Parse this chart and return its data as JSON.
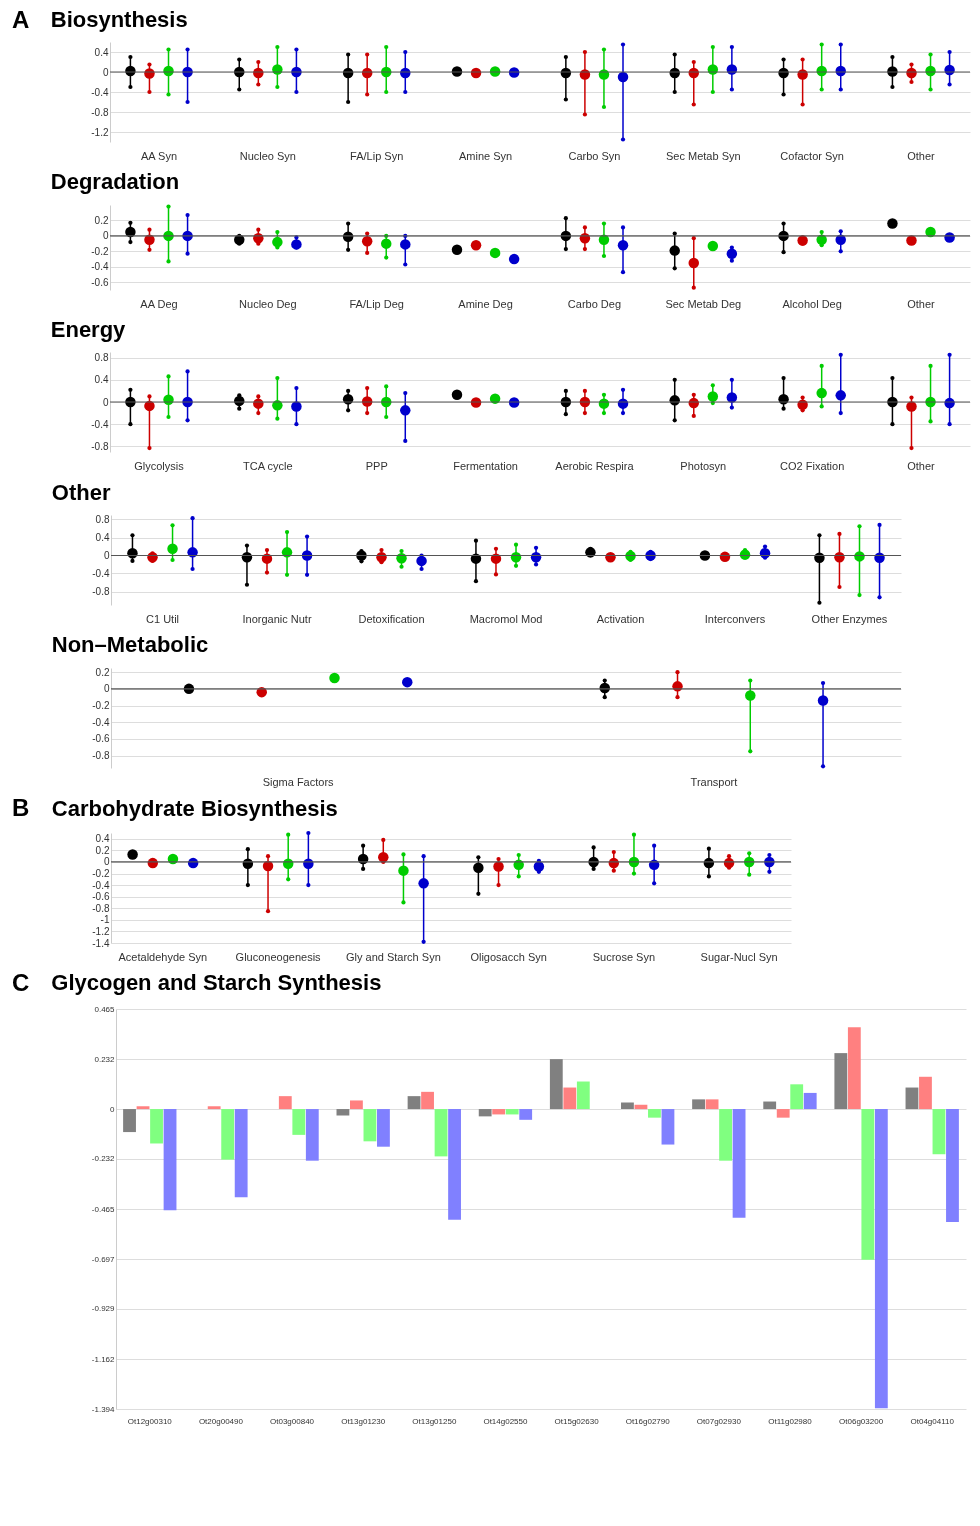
{
  "chart_data": [
    {
      "type": "scatter",
      "title": "Biosynthesis",
      "annotations": [
        "A"
      ],
      "categories": [
        "AA Syn",
        "Nucleo Syn",
        "FA/Lip Syn",
        "Amine Syn",
        "Carbo Syn",
        "Sec Metab Syn",
        "Cofactor Syn",
        "Other"
      ],
      "ylim": [
        -1.4,
        0.6
      ],
      "yticks": [
        0.4,
        0,
        -0.4,
        -0.8,
        -1.2
      ],
      "grid": "y",
      "ref_lines": [
        {
          "axis": "y",
          "value": 0
        }
      ],
      "series": [
        {
          "color": "#000000",
          "values": [
            0.02,
            0,
            -0.02,
            0.01,
            -0.02,
            -0.02,
            -0.02,
            0.01
          ],
          "errors": [
            [
              -0.3,
              0.3
            ],
            [
              -0.35,
              0.25
            ],
            [
              -0.6,
              0.35
            ],
            null,
            [
              -0.55,
              0.3
            ],
            [
              -0.4,
              0.35
            ],
            [
              -0.45,
              0.25
            ],
            [
              -0.3,
              0.3
            ]
          ]
        },
        {
          "color": "#cc0000",
          "values": [
            -0.03,
            -0.02,
            -0.02,
            -0.02,
            -0.05,
            -0.02,
            -0.05,
            -0.02
          ],
          "errors": [
            [
              -0.4,
              0.15
            ],
            [
              -0.25,
              0.2
            ],
            [
              -0.45,
              0.35
            ],
            null,
            [
              -0.85,
              0.4
            ],
            [
              -0.65,
              0.2
            ],
            [
              -0.65,
              0.25
            ],
            [
              -0.2,
              0.15
            ]
          ]
        },
        {
          "color": "#00cc00",
          "values": [
            0.02,
            0.05,
            0,
            0.01,
            -0.05,
            0.05,
            0.02,
            0.02
          ],
          "errors": [
            [
              -0.45,
              0.45
            ],
            [
              -0.3,
              0.5
            ],
            [
              -0.4,
              0.5
            ],
            null,
            [
              -0.7,
              0.45
            ],
            [
              -0.4,
              0.5
            ],
            [
              -0.35,
              0.55
            ],
            [
              -0.35,
              0.35
            ]
          ]
        },
        {
          "color": "#0000cc",
          "values": [
            0,
            0,
            -0.02,
            -0.01,
            -0.1,
            0.05,
            0.02,
            0.04
          ],
          "errors": [
            [
              -0.6,
              0.45
            ],
            [
              -0.4,
              0.45
            ],
            [
              -0.4,
              0.4
            ],
            null,
            [
              -1.35,
              0.55
            ],
            [
              -0.35,
              0.5
            ],
            [
              -0.35,
              0.55
            ],
            [
              -0.25,
              0.4
            ]
          ]
        }
      ]
    },
    {
      "type": "scatter",
      "title": "Degradation",
      "categories": [
        "AA Deg",
        "Nucleo Deg",
        "FA/Lip Deg",
        "Amine Deg",
        "Carbo Deg",
        "Sec Metab Deg",
        "Alcohol Deg",
        "Other"
      ],
      "ylim": [
        -0.7,
        0.4
      ],
      "yticks": [
        0.2,
        0,
        -0.2,
        -0.4,
        -0.6
      ],
      "grid": "y",
      "ref_lines": [
        {
          "axis": "y",
          "value": 0
        }
      ],
      "series": [
        {
          "color": "#000000",
          "values": [
            0.05,
            -0.05,
            -0.01,
            -0.18,
            0,
            -0.19,
            0,
            0.16
          ],
          "errors": [
            [
              -0.08,
              0.17
            ],
            [
              -0.1,
              0
            ],
            [
              -0.18,
              0.16
            ],
            null,
            [
              -0.17,
              0.23
            ],
            [
              -0.42,
              0.03
            ],
            [
              -0.21,
              0.16
            ],
            null
          ]
        },
        {
          "color": "#cc0000",
          "values": [
            -0.05,
            -0.03,
            -0.07,
            -0.12,
            -0.03,
            -0.35,
            -0.06,
            -0.06
          ],
          "errors": [
            [
              -0.18,
              0.08
            ],
            [
              -0.1,
              0.08
            ],
            [
              -0.22,
              0.03
            ],
            null,
            [
              -0.17,
              0.11
            ],
            [
              -0.67,
              -0.03
            ],
            [
              -0.1,
              -0.02
            ],
            null
          ]
        },
        {
          "color": "#00cc00",
          "values": [
            0,
            -0.08,
            -0.1,
            -0.22,
            -0.05,
            -0.13,
            -0.05,
            0.05
          ],
          "errors": [
            [
              -0.33,
              0.38
            ],
            [
              -0.15,
              0.05
            ],
            [
              -0.28,
              0
            ],
            null,
            [
              -0.26,
              0.16
            ],
            null,
            [
              -0.12,
              0.05
            ],
            null
          ]
        },
        {
          "color": "#0000cc",
          "values": [
            0,
            -0.11,
            -0.11,
            -0.3,
            -0.12,
            -0.23,
            -0.05,
            -0.02
          ],
          "errors": [
            [
              -0.23,
              0.27
            ],
            [
              -0.15,
              -0.02
            ],
            [
              -0.37,
              0
            ],
            null,
            [
              -0.47,
              0.11
            ],
            [
              -0.32,
              -0.15
            ],
            [
              -0.2,
              0.06
            ],
            null
          ]
        }
      ]
    },
    {
      "type": "scatter",
      "title": "Energy",
      "categories": [
        "Glycolysis",
        "TCA cycle",
        "PPP",
        "Fermentation",
        "Aerobic Respira",
        "Photosyn",
        "CO2 Fixation",
        "Other"
      ],
      "ylim": [
        -0.9,
        0.9
      ],
      "yticks": [
        0.8,
        0.4,
        0,
        -0.4,
        -0.8
      ],
      "grid": "y",
      "ref_lines": [
        {
          "axis": "y",
          "value": 0
        }
      ],
      "series": [
        {
          "color": "#000000",
          "values": [
            0,
            0.02,
            0.05,
            0.13,
            0,
            0.03,
            0.05,
            0
          ],
          "errors": [
            [
              -0.4,
              0.22
            ],
            [
              -0.12,
              0.12
            ],
            [
              -0.15,
              0.2
            ],
            null,
            [
              -0.22,
              0.2
            ],
            [
              -0.33,
              0.4
            ],
            [
              -0.12,
              0.43
            ],
            [
              -0.4,
              0.43
            ]
          ]
        },
        {
          "color": "#cc0000",
          "values": [
            -0.07,
            -0.03,
            0.01,
            -0.01,
            0,
            -0.02,
            -0.05,
            -0.08
          ],
          "errors": [
            [
              -0.83,
              0.1
            ],
            [
              -0.2,
              0.1
            ],
            [
              -0.2,
              0.25
            ],
            null,
            [
              -0.2,
              0.2
            ],
            [
              -0.25,
              0.13
            ],
            [
              -0.15,
              0.08
            ],
            [
              -0.83,
              0.08
            ]
          ]
        },
        {
          "color": "#00cc00",
          "values": [
            0.04,
            -0.06,
            0,
            0.06,
            -0.03,
            0.1,
            0.16,
            0
          ],
          "errors": [
            [
              -0.27,
              0.46
            ],
            [
              -0.3,
              0.43
            ],
            [
              -0.27,
              0.28
            ],
            null,
            [
              -0.2,
              0.13
            ],
            [
              -0.02,
              0.3
            ],
            [
              -0.08,
              0.65
            ],
            [
              -0.35,
              0.65
            ]
          ]
        },
        {
          "color": "#0000cc",
          "values": [
            0,
            -0.08,
            -0.15,
            -0.01,
            -0.03,
            0.08,
            0.12,
            -0.02
          ],
          "errors": [
            [
              -0.33,
              0.55
            ],
            [
              -0.4,
              0.25
            ],
            [
              -0.7,
              0.16
            ],
            null,
            [
              -0.2,
              0.22
            ],
            [
              -0.1,
              0.4
            ],
            [
              -0.2,
              0.85
            ],
            [
              -0.4,
              0.85
            ]
          ]
        }
      ]
    },
    {
      "type": "scatter",
      "title": "Other",
      "categories": [
        "C1 Util",
        "Inorganic Nutr",
        "Detoxification",
        "Macromol Mod",
        "Activation",
        "Interconvers",
        "Other Enzymes"
      ],
      "ylim": [
        -1.1,
        0.9
      ],
      "yticks": [
        0.8,
        0.4,
        0,
        -0.4,
        -0.8
      ],
      "grid": "y",
      "ref_lines": [
        {
          "axis": "y",
          "value": 0
        }
      ],
      "series": [
        {
          "color": "#000000",
          "values": [
            0.05,
            -0.04,
            0,
            -0.07,
            0.07,
            0,
            -0.05
          ],
          "errors": [
            [
              -0.12,
              0.45
            ],
            [
              -0.65,
              0.22
            ],
            [
              -0.13,
              0.1
            ],
            [
              -0.57,
              0.33
            ],
            [
              0,
              0.15
            ],
            null,
            [
              -1.05,
              0.45
            ]
          ]
        },
        {
          "color": "#cc0000",
          "values": [
            -0.04,
            -0.07,
            -0.04,
            -0.07,
            -0.04,
            -0.03,
            -0.04
          ],
          "errors": [
            [
              -0.12,
              0.05
            ],
            [
              -0.38,
              0.12
            ],
            [
              -0.15,
              0.12
            ],
            [
              -0.42,
              0.15
            ],
            null,
            null,
            [
              -0.7,
              0.48
            ]
          ]
        },
        {
          "color": "#00cc00",
          "values": [
            0.15,
            0.07,
            -0.06,
            -0.04,
            -0.01,
            0.02,
            -0.02
          ],
          "errors": [
            [
              -0.1,
              0.67
            ],
            [
              -0.43,
              0.52
            ],
            [
              -0.25,
              0.1
            ],
            [
              -0.23,
              0.24
            ],
            [
              -0.1,
              0.08
            ],
            [
              -0.05,
              0.12
            ],
            [
              -0.88,
              0.65
            ]
          ]
        },
        {
          "color": "#0000cc",
          "values": [
            0.07,
            0,
            -0.12,
            -0.04,
            0,
            0.05,
            -0.05
          ],
          "errors": [
            [
              -0.3,
              0.83
            ],
            [
              -0.43,
              0.42
            ],
            [
              -0.3,
              0
            ],
            [
              -0.2,
              0.17
            ],
            [
              -0.08,
              0.08
            ],
            [
              -0.05,
              0.2
            ],
            [
              -0.93,
              0.68
            ]
          ]
        }
      ]
    },
    {
      "type": "scatter",
      "title": "Non–Metabolic",
      "categories": [
        "Sigma Factors",
        "Transport"
      ],
      "ylim": [
        -0.95,
        0.25
      ],
      "yticks": [
        0.2,
        0,
        -0.2,
        -0.4,
        -0.6,
        -0.8
      ],
      "grid": "y",
      "ref_lines": [
        {
          "axis": "y",
          "value": 0
        }
      ],
      "series": [
        {
          "color": "#000000",
          "values": [
            0,
            0.01
          ],
          "errors": [
            null,
            [
              -0.1,
              0.1
            ]
          ]
        },
        {
          "color": "#cc0000",
          "values": [
            -0.04,
            0.03
          ],
          "errors": [
            null,
            [
              -0.1,
              0.2
            ]
          ]
        },
        {
          "color": "#00cc00",
          "values": [
            0.13,
            -0.08
          ],
          "errors": [
            null,
            [
              -0.75,
              0.1
            ]
          ]
        },
        {
          "color": "#0000cc",
          "values": [
            0.08,
            -0.14
          ],
          "errors": [
            null,
            [
              -0.93,
              0.07
            ]
          ]
        }
      ]
    },
    {
      "type": "scatter",
      "title": "Carbohydrate Biosynthesis",
      "annotations": [
        "B"
      ],
      "categories": [
        "Acetaldehyde Syn",
        "Gluconeogenesis",
        "Gly and Starch Syn",
        "Oligosacch Syn",
        "Sucrose Syn",
        "Sugar-Nucl Syn"
      ],
      "ylim": [
        -1.4,
        0.5
      ],
      "yticks": [
        0.4,
        0.2,
        0,
        -0.2,
        -0.4,
        -0.6,
        -0.8,
        -1,
        -1.2,
        -1.4
      ],
      "grid": "y",
      "ref_lines": [
        {
          "axis": "y",
          "value": 0
        }
      ],
      "series": [
        {
          "color": "#000000",
          "values": [
            0.13,
            -0.03,
            0.05,
            -0.1,
            0,
            -0.02
          ],
          "errors": [
            null,
            [
              -0.4,
              0.22
            ],
            [
              -0.12,
              0.28
            ],
            [
              -0.55,
              0.08
            ],
            [
              -0.12,
              0.25
            ],
            [
              -0.25,
              0.23
            ]
          ]
        },
        {
          "color": "#cc0000",
          "values": [
            -0.02,
            -0.07,
            0.08,
            -0.08,
            -0.02,
            -0.02
          ],
          "errors": [
            null,
            [
              -0.85,
              0.1
            ],
            [
              0,
              0.38
            ],
            [
              -0.4,
              0.05
            ],
            [
              -0.15,
              0.17
            ],
            [
              -0.1,
              0.1
            ]
          ]
        },
        {
          "color": "#00cc00",
          "values": [
            0.05,
            -0.03,
            -0.15,
            -0.05,
            0,
            0
          ],
          "errors": [
            null,
            [
              -0.3,
              0.47
            ],
            [
              -0.7,
              0.13
            ],
            [
              -0.25,
              0.12
            ],
            [
              -0.2,
              0.47
            ],
            [
              -0.22,
              0.15
            ]
          ]
        },
        {
          "color": "#0000cc",
          "values": [
            -0.02,
            -0.03,
            -0.37,
            -0.08,
            -0.05,
            0
          ],
          "errors": [
            null,
            [
              -0.4,
              0.5
            ],
            [
              -1.38,
              0.1
            ],
            [
              -0.17,
              0.02
            ],
            [
              -0.37,
              0.28
            ],
            [
              -0.17,
              0.12
            ]
          ]
        }
      ]
    },
    {
      "type": "bar",
      "title": "Glycogen and Starch Synthesis",
      "annotations": [
        "C"
      ],
      "categories": [
        "Ot12g00310",
        "Ot20g00490",
        "Ot03g00840",
        "Ot13g01230",
        "Ot13g01250",
        "Ot14g02550",
        "Ot15g02630",
        "Ot16g02790",
        "Ot07g02930",
        "Ot11g02980",
        "Ot06g03200",
        "Ot04g04110"
      ],
      "ylim": [
        -1.394,
        0.465
      ],
      "yticks": [
        0.465,
        0.232,
        0,
        -0.232,
        -0.465,
        -0.697,
        -0.929,
        -1.162,
        -1.394
      ],
      "grid": "y",
      "series": [
        {
          "color": "#808080",
          "values": [
            -0.107,
            0,
            0,
            -0.03,
            0.06,
            -0.034,
            0.232,
            0.03,
            0.045,
            0.035,
            0.26,
            0.1
          ]
        },
        {
          "color": "#ff8080",
          "values": [
            0.013,
            0.013,
            0.06,
            0.04,
            0.08,
            -0.025,
            0.1,
            0.02,
            0.045,
            -0.04,
            0.38,
            0.15
          ]
        },
        {
          "color": "#80ff80",
          "values": [
            -0.16,
            -0.235,
            -0.12,
            -0.15,
            -0.22,
            -0.025,
            0.128,
            -0.04,
            -0.24,
            0.115,
            -0.7,
            -0.21
          ]
        },
        {
          "color": "#8080ff",
          "values": [
            -0.47,
            -0.41,
            -0.24,
            -0.175,
            -0.515,
            -0.05,
            null,
            -0.165,
            -0.505,
            0.075,
            -1.39,
            -0.525
          ]
        }
      ]
    }
  ]
}
